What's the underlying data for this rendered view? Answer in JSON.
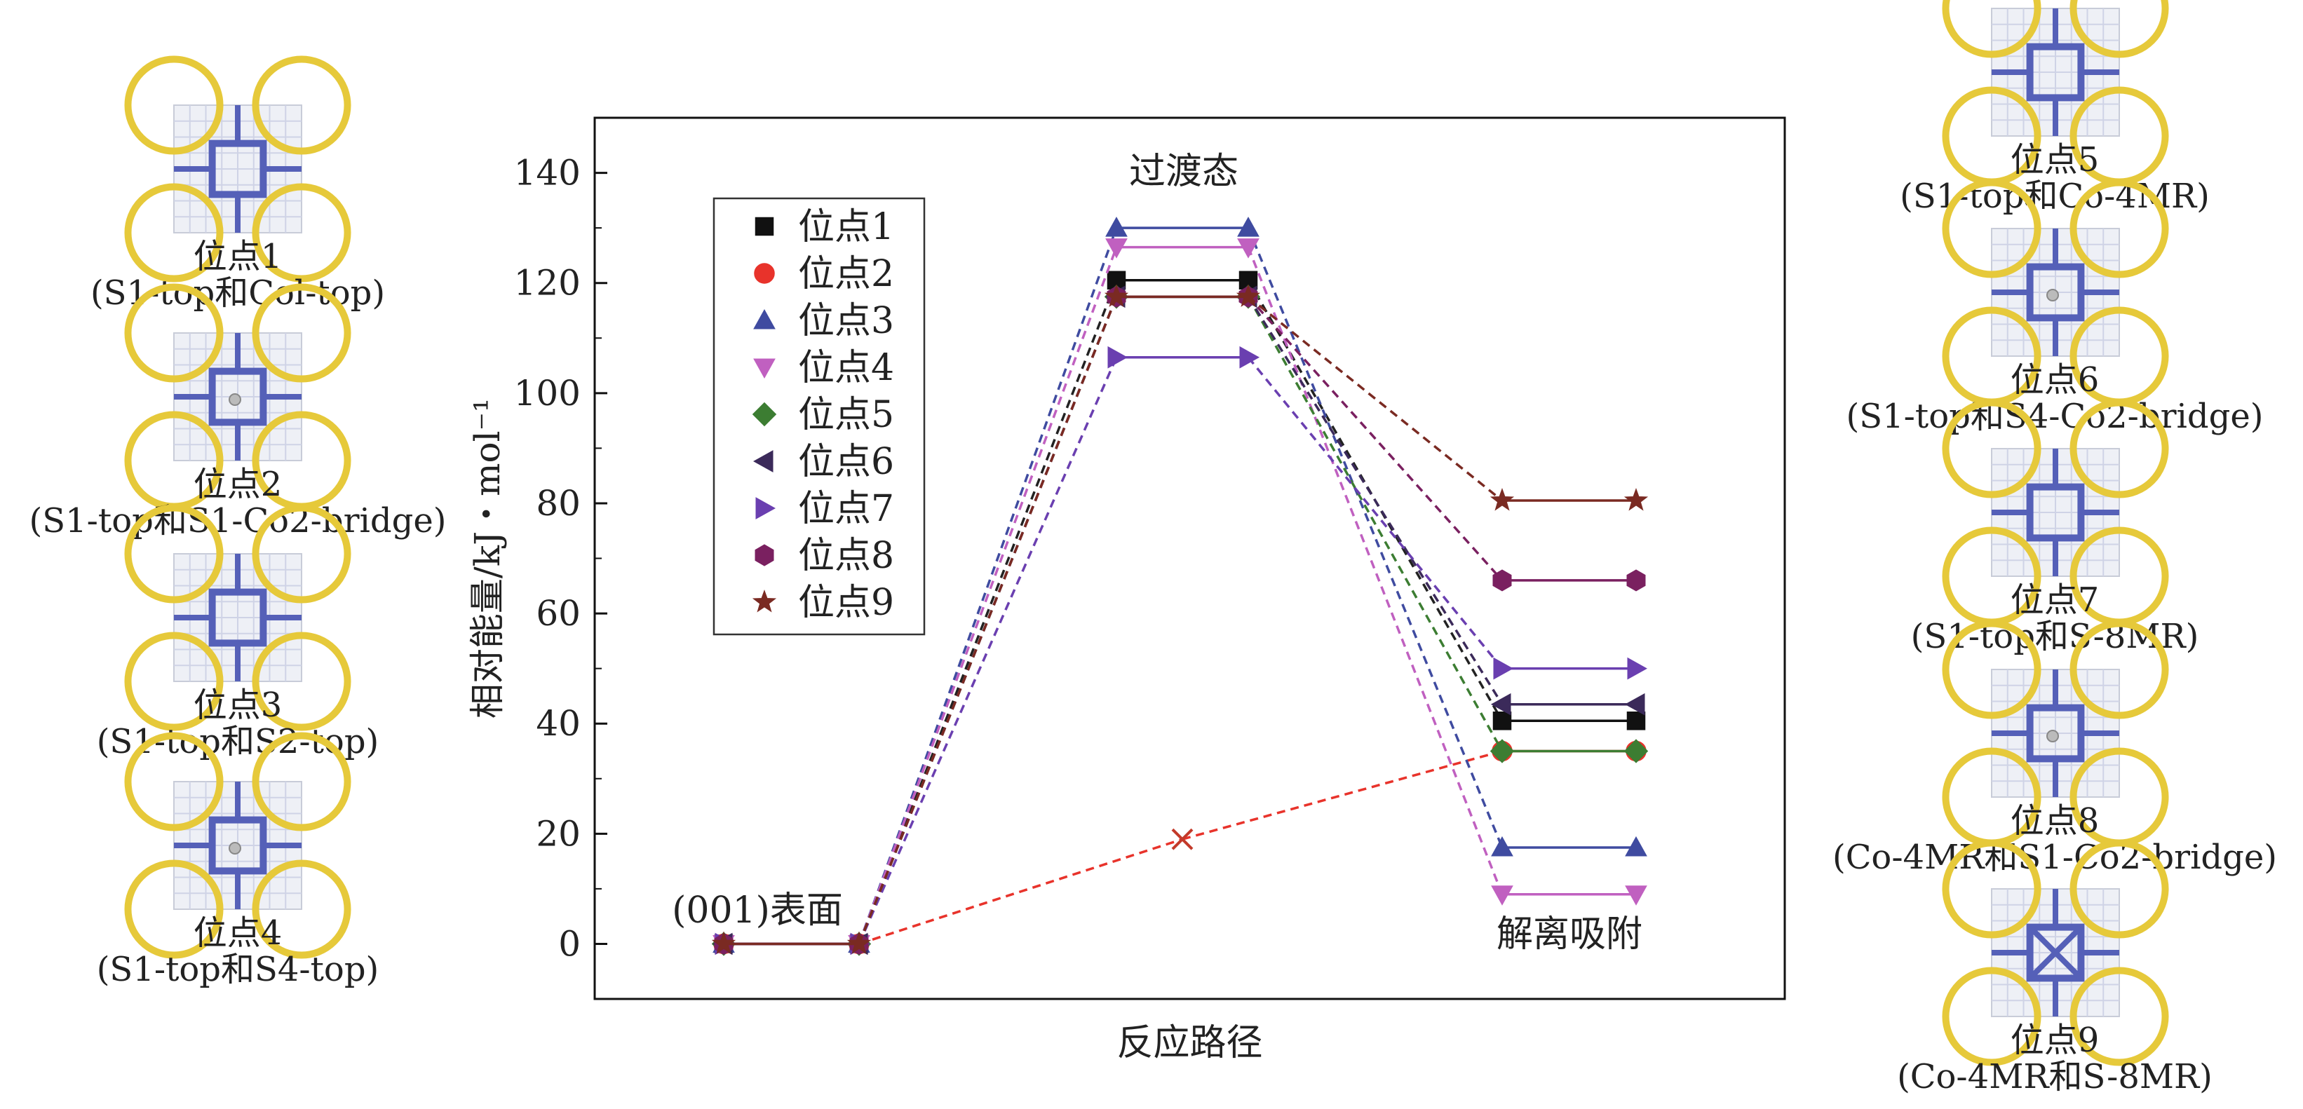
{
  "sites_left": [
    {
      "name": "位点1",
      "desc": "(S1-top和Col-top)"
    },
    {
      "name": "位点2",
      "desc": "(S1-top和S1-Co2-bridge)"
    },
    {
      "name": "位点3",
      "desc": "(S1-top和S2-top)"
    },
    {
      "name": "位点4",
      "desc": "(S1-top和S4-top)"
    }
  ],
  "sites_right": [
    {
      "name": "位点5",
      "desc": "(S1-top和Co-4MR)"
    },
    {
      "name": "位点6",
      "desc": "(S1-top和S4-Co2-bridge)"
    },
    {
      "name": "位点7",
      "desc": "(S1-top和S-8MR)"
    },
    {
      "name": "位点8",
      "desc": "(Co-4MR和S1-Co2-bridge)"
    },
    {
      "name": "位点9",
      "desc": "(Co-4MR和S-8MR)"
    }
  ],
  "chart_data": {
    "type": "line",
    "xlabel": "反应路径",
    "ylabel": "相对能量/kJ・mol⁻¹",
    "ylim": [
      -10,
      150
    ],
    "yticks": [
      0,
      20,
      40,
      60,
      80,
      100,
      120,
      140
    ],
    "stage_labels": [
      "(001)表面",
      "过渡态",
      "解离吸附"
    ],
    "legend_position": "upper-left",
    "series": [
      {
        "name": "位点1",
        "marker": "square",
        "color": "#111111",
        "dash_color": "#222222",
        "values": [
          0,
          120.5,
          40.5
        ]
      },
      {
        "name": "位点2",
        "marker": "circle",
        "color": "#e8332b",
        "dash_color": "#e8332b",
        "values": [
          0,
          19,
          35
        ]
      },
      {
        "name": "位点3",
        "marker": "triangle-up",
        "color": "#3f4ba0",
        "dash_color": "#3f4ba0",
        "values": [
          0,
          130,
          17.5
        ]
      },
      {
        "name": "位点4",
        "marker": "triangle-down",
        "color": "#c060c0",
        "dash_color": "#c060c0",
        "values": [
          0,
          126.5,
          9
        ]
      },
      {
        "name": "位点5",
        "marker": "diamond",
        "color": "#3c7d32",
        "dash_color": "#3c7d32",
        "values": [
          0,
          117.5,
          35
        ]
      },
      {
        "name": "位点6",
        "marker": "triangle-left",
        "color": "#3b2a5a",
        "dash_color": "#3b2a5a",
        "values": [
          0,
          117.5,
          43.5
        ]
      },
      {
        "name": "位点7",
        "marker": "triangle-right",
        "color": "#6a3fb0",
        "dash_color": "#6a3fb0",
        "values": [
          0,
          106.5,
          50
        ]
      },
      {
        "name": "位点8",
        "marker": "hexagon",
        "color": "#7a2060",
        "dash_color": "#7a2060",
        "values": [
          0,
          117.5,
          66
        ]
      },
      {
        "name": "位点9",
        "marker": "star",
        "color": "#7a2a22",
        "dash_color": "#7a2a22",
        "values": [
          0,
          117.5,
          80.5
        ]
      }
    ]
  }
}
